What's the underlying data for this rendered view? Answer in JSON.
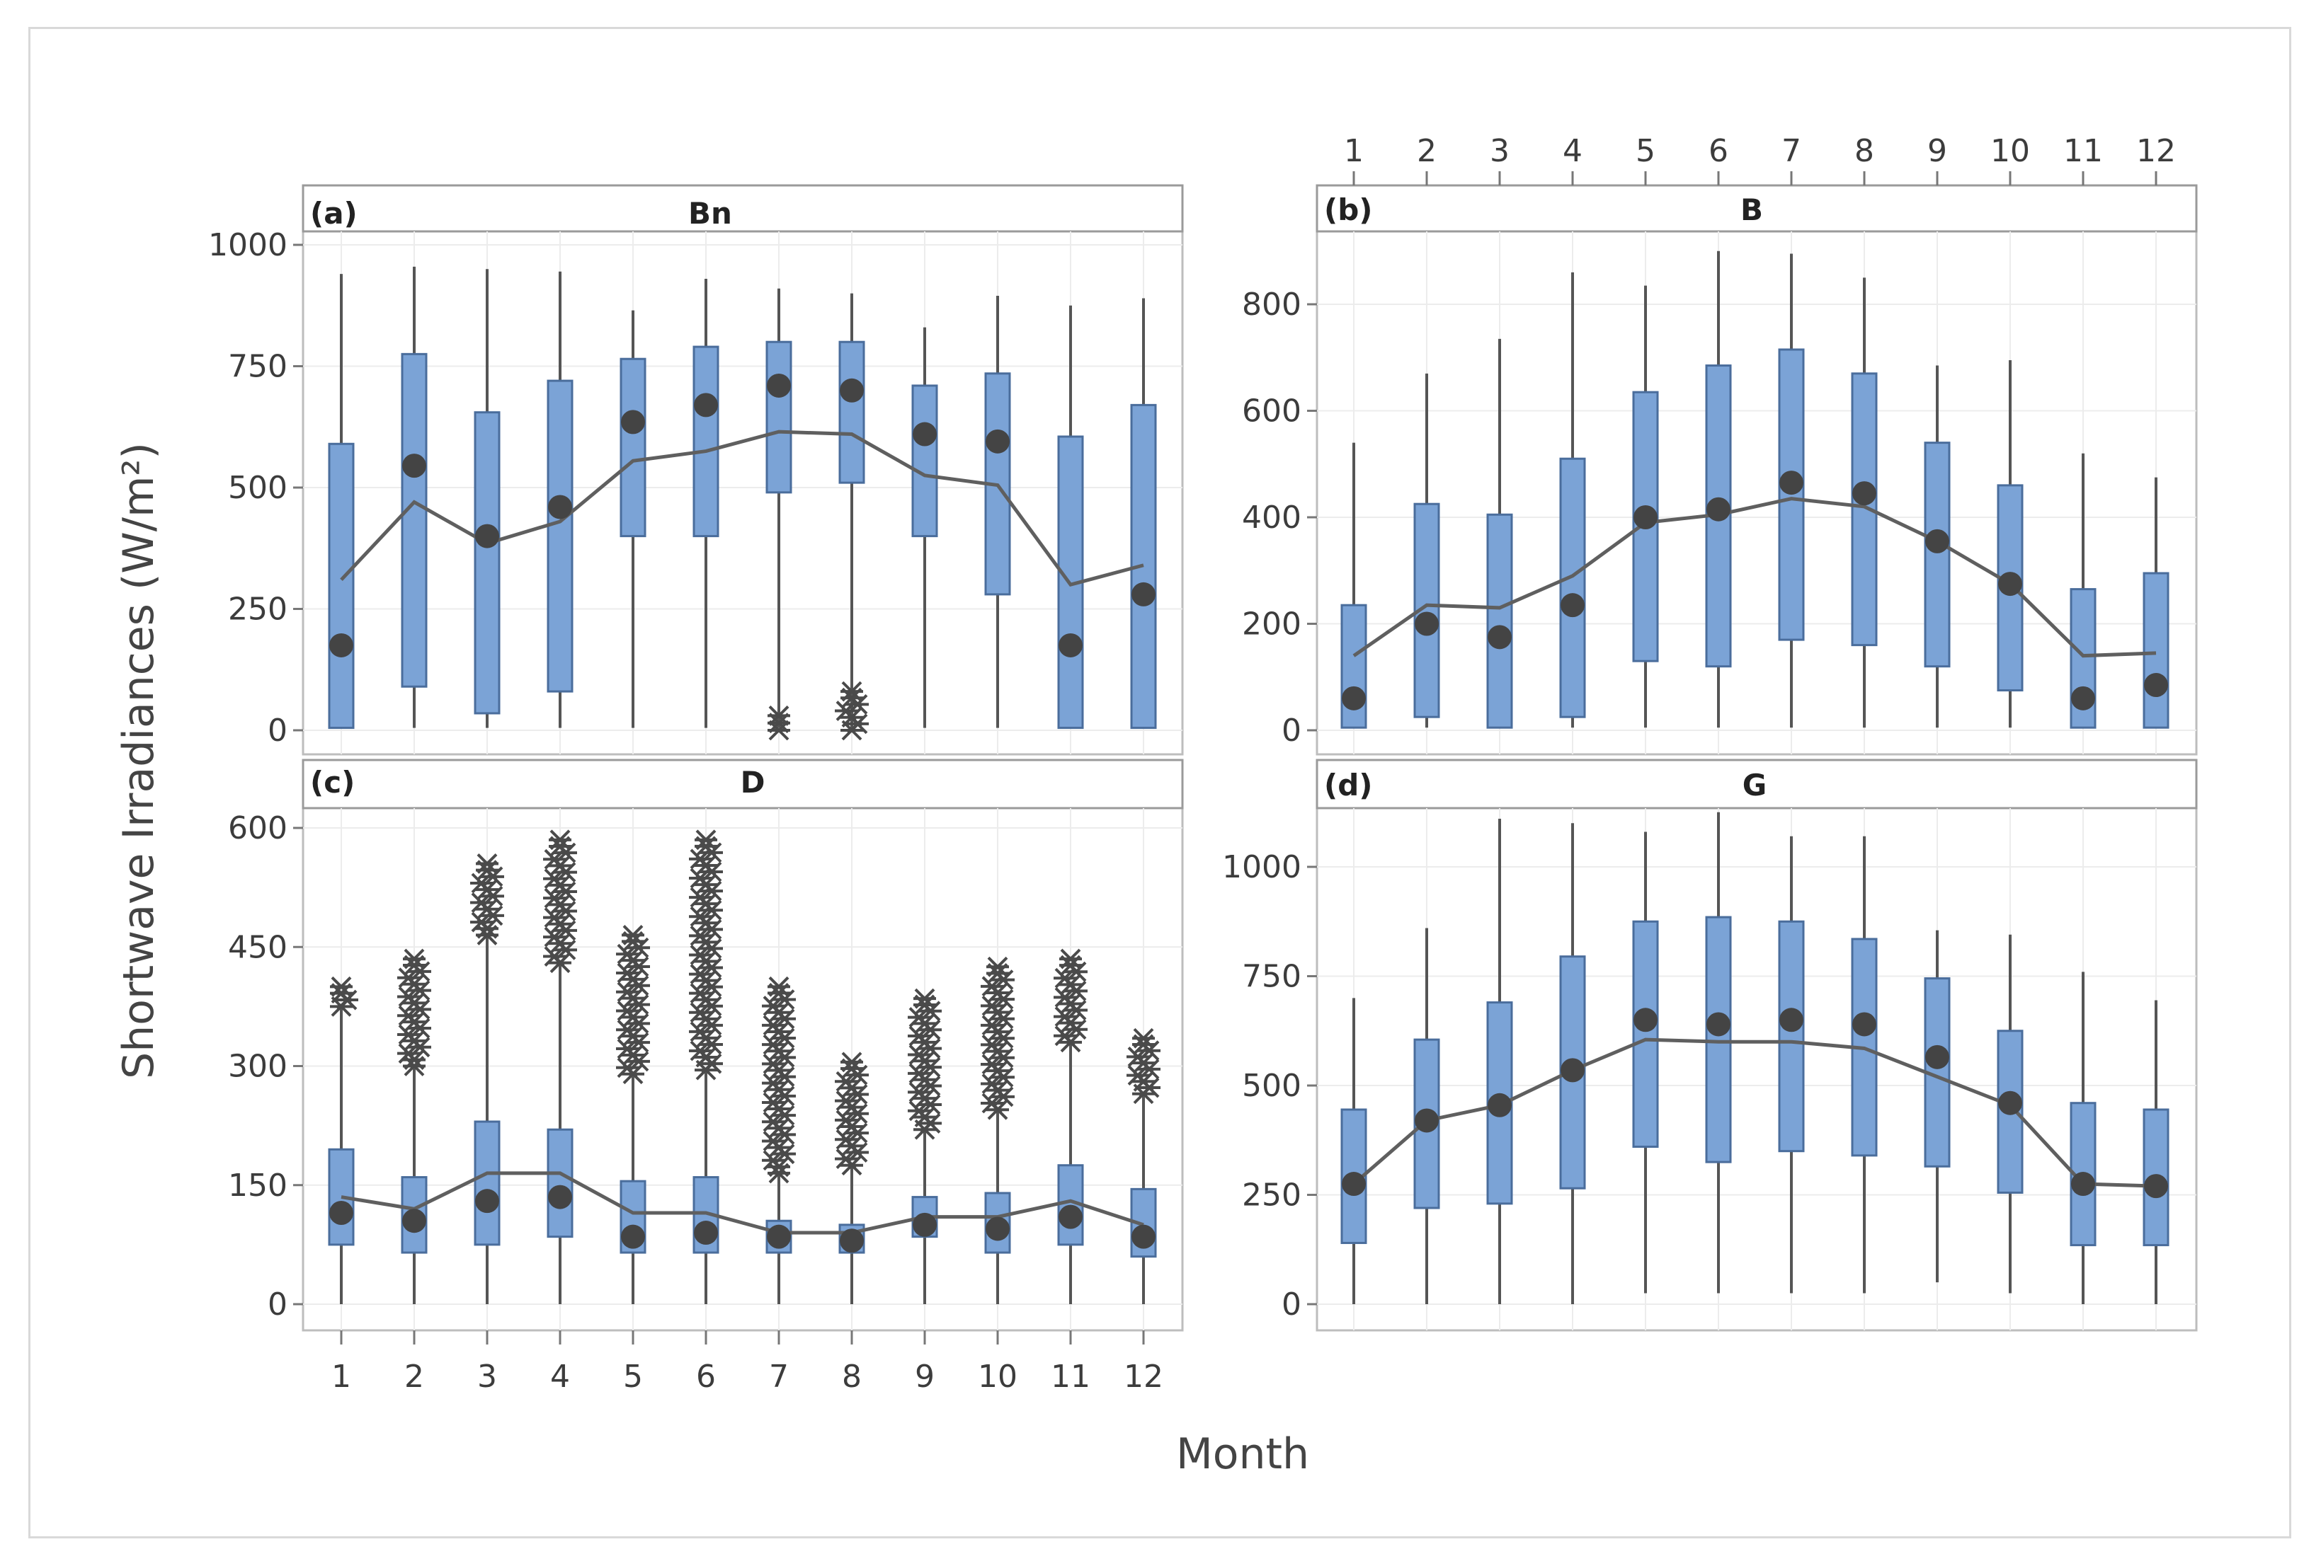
{
  "figure": {
    "y_axis_title": "Shortwave Irradiances (W/m²)",
    "x_axis_title": "Month"
  },
  "chart_data": [
    {
      "type": "box",
      "panel_label": "(a)",
      "title": "Bn",
      "categories": [
        "1",
        "2",
        "3",
        "4",
        "5",
        "6",
        "7",
        "8",
        "9",
        "10",
        "11",
        "12"
      ],
      "ylim": [
        0,
        1000
      ],
      "yticks": [
        0,
        250,
        500,
        750,
        1000
      ],
      "whisker_low": [
        5,
        5,
        5,
        5,
        5,
        5,
        5,
        5,
        5,
        5,
        5,
        5
      ],
      "q1": [
        5,
        90,
        35,
        80,
        400,
        400,
        490,
        510,
        400,
        280,
        5,
        5
      ],
      "q3": [
        590,
        775,
        655,
        720,
        765,
        790,
        800,
        800,
        710,
        735,
        605,
        670
      ],
      "whisker_high": [
        940,
        955,
        950,
        945,
        865,
        930,
        910,
        900,
        830,
        895,
        875,
        890
      ],
      "mean": [
        175,
        545,
        400,
        460,
        635,
        670,
        710,
        700,
        610,
        595,
        175,
        280
      ],
      "mean_connect": [
        310,
        470,
        385,
        430,
        555,
        575,
        615,
        610,
        525,
        505,
        300,
        340
      ],
      "outliers": [
        {
          "month": "7",
          "low": 0,
          "high": 30
        },
        {
          "month": "8",
          "low": 0,
          "high": 80
        }
      ]
    },
    {
      "type": "box",
      "panel_label": "(b)",
      "title": "B",
      "categories": [
        "1",
        "2",
        "3",
        "4",
        "5",
        "6",
        "7",
        "8",
        "9",
        "10",
        "11",
        "12"
      ],
      "ylim": [
        0,
        940
      ],
      "yticks": [
        0,
        200,
        400,
        600,
        800
      ],
      "whisker_low": [
        5,
        5,
        5,
        5,
        5,
        5,
        5,
        5,
        5,
        5,
        5,
        5
      ],
      "q1": [
        5,
        25,
        5,
        25,
        130,
        120,
        170,
        160,
        120,
        75,
        5,
        5
      ],
      "q3": [
        235,
        425,
        405,
        510,
        635,
        685,
        715,
        670,
        540,
        460,
        265,
        295
      ],
      "whisker_high": [
        540,
        670,
        735,
        860,
        835,
        900,
        895,
        850,
        685,
        695,
        520,
        475
      ],
      "mean": [
        60,
        200,
        175,
        235,
        400,
        415,
        465,
        445,
        355,
        275,
        60,
        85
      ],
      "mean_connect": [
        140,
        235,
        230,
        290,
        390,
        405,
        435,
        420,
        355,
        275,
        140,
        145
      ]
    },
    {
      "type": "box",
      "panel_label": "(c)",
      "title": "D",
      "categories": [
        "1",
        "2",
        "3",
        "4",
        "5",
        "6",
        "7",
        "8",
        "9",
        "10",
        "11",
        "12"
      ],
      "ylim": [
        0,
        600
      ],
      "yticks": [
        0,
        150,
        300,
        450,
        600
      ],
      "whisker_low": [
        0,
        0,
        0,
        0,
        0,
        0,
        0,
        0,
        0,
        0,
        0,
        0
      ],
      "q1": [
        75,
        65,
        75,
        85,
        65,
        65,
        65,
        65,
        85,
        65,
        75,
        60
      ],
      "q3": [
        195,
        160,
        230,
        220,
        155,
        160,
        105,
        100,
        135,
        140,
        175,
        145
      ],
      "whisker_high": [
        375,
        300,
        465,
        430,
        290,
        295,
        165,
        175,
        220,
        245,
        330,
        265
      ],
      "mean": [
        115,
        105,
        130,
        135,
        85,
        90,
        85,
        80,
        100,
        95,
        110,
        85
      ],
      "mean_connect": [
        135,
        120,
        165,
        165,
        115,
        115,
        90,
        90,
        110,
        110,
        130,
        100
      ],
      "outliers": [
        {
          "month": "1",
          "low": 375,
          "high": 400
        },
        {
          "month": "2",
          "low": 300,
          "high": 435
        },
        {
          "month": "3",
          "low": 465,
          "high": 555
        },
        {
          "month": "4",
          "low": 430,
          "high": 585
        },
        {
          "month": "5",
          "low": 290,
          "high": 465
        },
        {
          "month": "6",
          "low": 295,
          "high": 585
        },
        {
          "month": "7",
          "low": 165,
          "high": 400
        },
        {
          "month": "8",
          "low": 175,
          "high": 305
        },
        {
          "month": "9",
          "low": 220,
          "high": 385
        },
        {
          "month": "10",
          "low": 245,
          "high": 425
        },
        {
          "month": "11",
          "low": 330,
          "high": 435
        },
        {
          "month": "12",
          "low": 265,
          "high": 335
        }
      ]
    },
    {
      "type": "box",
      "panel_label": "(d)",
      "title": "G",
      "categories": [
        "1",
        "2",
        "3",
        "4",
        "5",
        "6",
        "7",
        "8",
        "9",
        "10",
        "11",
        "12"
      ],
      "ylim": [
        0,
        1150
      ],
      "yticks": [
        0,
        250,
        500,
        750,
        1000
      ],
      "whisker_low": [
        0,
        0,
        0,
        0,
        25,
        25,
        25,
        25,
        50,
        25,
        0,
        0
      ],
      "q1": [
        140,
        220,
        230,
        265,
        360,
        325,
        350,
        340,
        315,
        255,
        135,
        135
      ],
      "q3": [
        445,
        605,
        690,
        795,
        875,
        885,
        875,
        835,
        745,
        625,
        460,
        445
      ],
      "whisker_high": [
        700,
        860,
        1110,
        1100,
        1080,
        1125,
        1070,
        1070,
        855,
        845,
        760,
        695
      ],
      "mean": [
        275,
        420,
        455,
        535,
        650,
        640,
        650,
        640,
        565,
        460,
        275,
        270
      ],
      "mean_connect": [
        275,
        420,
        455,
        535,
        605,
        600,
        600,
        585,
        520,
        455,
        275,
        270
      ]
    }
  ]
}
